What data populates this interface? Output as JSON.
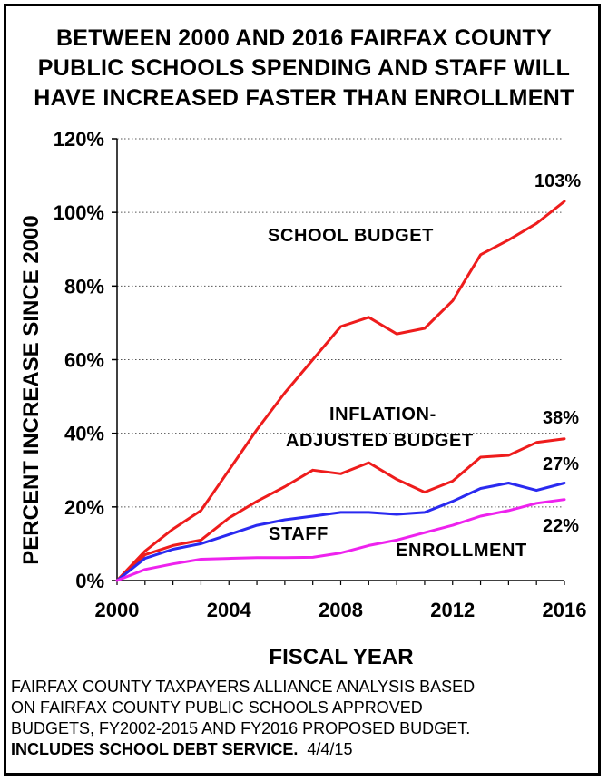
{
  "header": {
    "title_lines": [
      "BETWEEN 2000 AND 2016 FAIRFAX COUNTY",
      "PUBLIC SCHOOLS  SPENDING AND STAFF WILL",
      "HAVE INCREASED FASTER THAN ENROLLMENT"
    ]
  },
  "chart_data": {
    "type": "line",
    "title": "BETWEEN 2000 AND 2016 FAIRFAX COUNTY PUBLIC SCHOOLS  SPENDING AND STAFF WILL HAVE INCREASED FASTER THAN ENROLLMENT",
    "xlabel": "FISCAL YEAR",
    "ylabel": "PERCENT INCREASE SINCE 2000",
    "xlim": [
      2000,
      2016
    ],
    "ylim": [
      0,
      120
    ],
    "x_ticks": [
      "2000",
      "2004",
      "2008",
      "2012",
      "2016"
    ],
    "y_ticks": [
      "0%",
      "20%",
      "40%",
      "60%",
      "80%",
      "100%",
      "120%"
    ],
    "grid": "horizontal dotted",
    "x": [
      2000,
      2001,
      2002,
      2003,
      2004,
      2005,
      2006,
      2007,
      2008,
      2009,
      2010,
      2011,
      2012,
      2013,
      2014,
      2015,
      2016
    ],
    "series": [
      {
        "name": "SCHOOL BUDGET",
        "color": "#ee1c1c",
        "values": [
          0,
          8,
          14,
          19,
          30,
          41,
          51,
          60,
          69,
          71.5,
          67,
          68.5,
          76,
          88.5,
          92.5,
          97,
          103
        ],
        "end_label": "103%"
      },
      {
        "name": "INFLATION-ADJUSTED BUDGET",
        "label_lines": [
          "INFLATION-",
          "ADJUSTED BUDGET"
        ],
        "color": "#ee1c1c",
        "values": [
          0,
          7,
          9.5,
          11,
          17,
          21.5,
          25.5,
          30,
          29,
          32,
          27.5,
          24,
          27,
          33.5,
          34,
          37.5,
          38.5
        ],
        "end_label": "38%"
      },
      {
        "name": "STAFF",
        "color": "#2a2af0",
        "values": [
          0,
          6,
          8.5,
          10,
          12.5,
          15,
          16.5,
          17.5,
          18.5,
          18.5,
          18,
          18.5,
          21.5,
          25,
          26.5,
          24.5,
          26.5
        ],
        "end_label": "27%"
      },
      {
        "name": "ENROLLMENT",
        "color": "#ee22ee",
        "values": [
          0,
          3,
          4.5,
          5.8,
          6,
          6.2,
          6.2,
          6.3,
          7.5,
          9.5,
          11,
          13,
          15,
          17.5,
          19,
          21,
          22
        ],
        "end_label": "22%"
      }
    ]
  },
  "footer": {
    "lines": [
      "FAIRFAX COUNTY TAXPAYERS ALLIANCE ANALYSIS BASED",
      "ON  FAIRFAX COUNTY PUBLIC SCHOOLS APPROVED",
      "BUDGETS, FY2002-2015 AND FY2016 PROPOSED BUDGET."
    ],
    "bold_note": "INCLUDES SCHOOL DEBT SERVICE.",
    "date": "4/4/15"
  }
}
